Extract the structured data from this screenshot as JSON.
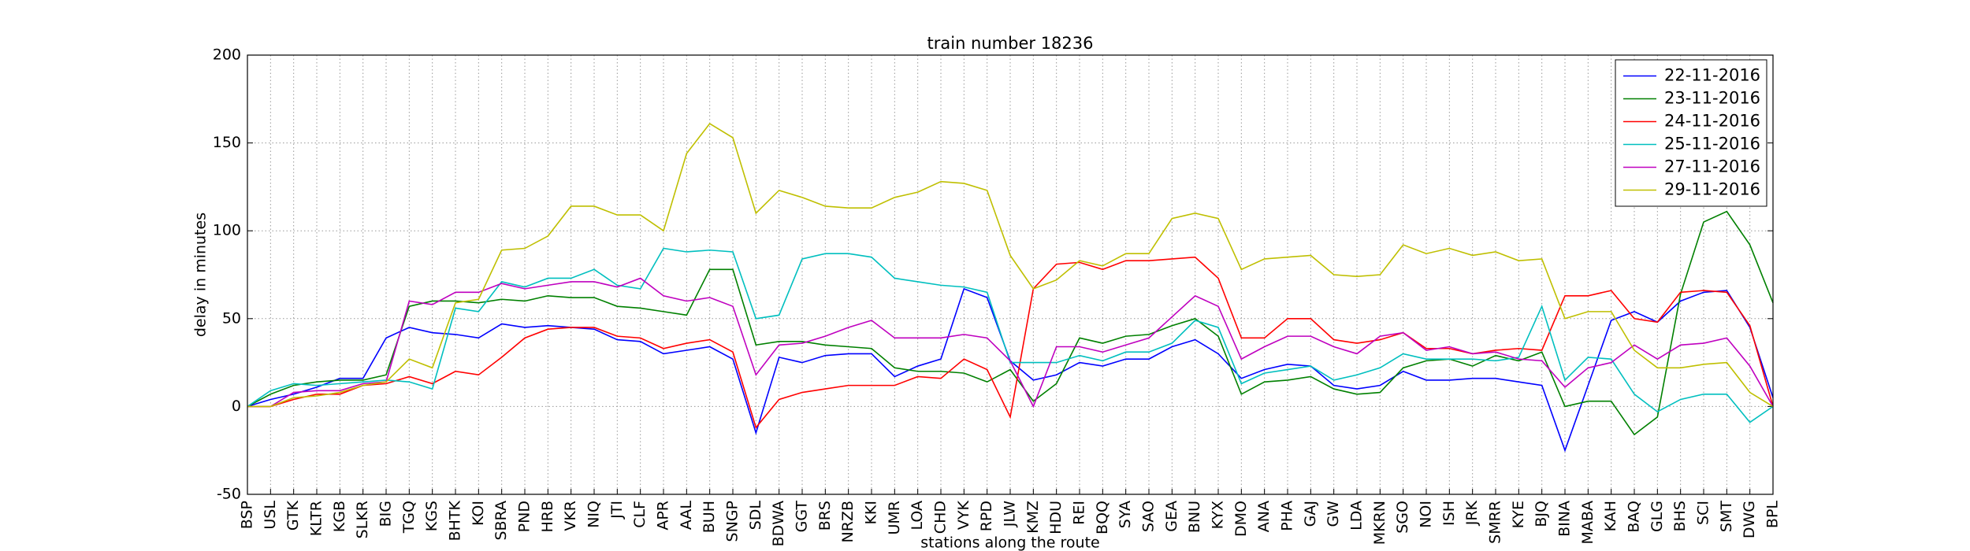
{
  "chart_data": {
    "type": "line",
    "title": "train number 18236",
    "x_label": "stations along the route",
    "y_label": "delay in minutes",
    "categories": [
      "BSP",
      "USL",
      "GTK",
      "KLTR",
      "KGB",
      "SLKR",
      "BIG",
      "TGQ",
      "KGS",
      "BHTK",
      "KOI",
      "SBRA",
      "PND",
      "HRB",
      "VKR",
      "NIQ",
      "JTI",
      "CLF",
      "APR",
      "AAL",
      "BUH",
      "SNGP",
      "SDL",
      "BDWA",
      "GGT",
      "BRS",
      "NRZB",
      "KKI",
      "UMR",
      "LOA",
      "CHD",
      "VYK",
      "RPD",
      "JLW",
      "KMZ",
      "HDU",
      "REI",
      "BQQ",
      "SYA",
      "SAO",
      "GEA",
      "BNU",
      "KYX",
      "DMO",
      "ANA",
      "PHA",
      "GAJ",
      "GW",
      "LDA",
      "MKRN",
      "SGO",
      "NOI",
      "ISH",
      "JRK",
      "SMRR",
      "KYE",
      "BJQ",
      "BINA",
      "MABA",
      "KAH",
      "BAQ",
      "GLG",
      "BHS",
      "SCI",
      "SMT",
      "DWG",
      "BPL"
    ],
    "series": [
      {
        "name": "22-11-2016",
        "color": "#0000ff",
        "values": [
          0,
          4,
          7,
          11,
          16,
          16,
          39,
          45,
          42,
          41,
          39,
          47,
          45,
          46,
          45,
          44,
          38,
          37,
          30,
          32,
          34,
          27,
          -15,
          28,
          25,
          29,
          30,
          30,
          17,
          23,
          27,
          67,
          62,
          26,
          15,
          18,
          25,
          23,
          27,
          27,
          34,
          38,
          30,
          16,
          21,
          24,
          23,
          12,
          10,
          12,
          20,
          15,
          15,
          16,
          16,
          14,
          12,
          -25,
          12,
          49,
          54,
          48,
          60,
          65,
          66,
          45,
          5
        ]
      },
      {
        "name": "23-11-2016",
        "color": "#008000",
        "values": [
          0,
          7,
          12,
          14,
          15,
          15,
          18,
          57,
          60,
          60,
          59,
          61,
          60,
          63,
          62,
          62,
          57,
          56,
          54,
          52,
          78,
          78,
          35,
          37,
          37,
          35,
          34,
          33,
          22,
          20,
          20,
          19,
          14,
          21,
          3,
          13,
          39,
          36,
          40,
          41,
          46,
          50,
          40,
          7,
          14,
          15,
          17,
          10,
          7,
          8,
          22,
          26,
          27,
          23,
          29,
          26,
          31,
          0,
          3,
          3,
          -16,
          -6,
          64,
          105,
          111,
          92,
          59
        ]
      },
      {
        "name": "24-11-2016",
        "color": "#ff0000",
        "values": [
          0,
          0,
          4,
          7,
          7,
          12,
          13,
          17,
          13,
          20,
          18,
          28,
          39,
          44,
          45,
          45,
          40,
          39,
          33,
          36,
          38,
          31,
          -12,
          4,
          8,
          10,
          12,
          12,
          12,
          17,
          16,
          27,
          21,
          -6,
          67,
          81,
          82,
          78,
          83,
          83,
          84,
          85,
          73,
          39,
          39,
          50,
          50,
          38,
          36,
          38,
          42,
          33,
          33,
          30,
          32,
          33,
          32,
          63,
          63,
          66,
          50,
          48,
          65,
          66,
          65,
          46,
          0
        ]
      },
      {
        "name": "25-11-2016",
        "color": "#00bfbf",
        "values": [
          0,
          9,
          13,
          12,
          13,
          14,
          15,
          14,
          10,
          56,
          54,
          71,
          68,
          73,
          73,
          78,
          69,
          67,
          90,
          88,
          89,
          88,
          50,
          52,
          84,
          87,
          87,
          85,
          73,
          71,
          69,
          68,
          65,
          25,
          25,
          25,
          29,
          26,
          31,
          31,
          36,
          49,
          45,
          13,
          19,
          21,
          23,
          15,
          18,
          22,
          30,
          27,
          27,
          27,
          26,
          28,
          57,
          15,
          28,
          27,
          7,
          -3,
          4,
          7,
          7,
          -9,
          0
        ]
      },
      {
        "name": "27-11-2016",
        "color": "#bf00bf",
        "values": [
          0,
          0,
          8,
          9,
          9,
          13,
          14,
          60,
          58,
          65,
          65,
          70,
          67,
          69,
          71,
          71,
          68,
          73,
          63,
          60,
          62,
          57,
          18,
          35,
          36,
          40,
          45,
          49,
          39,
          39,
          39,
          41,
          39,
          26,
          0,
          34,
          34,
          31,
          35,
          39,
          51,
          63,
          57,
          27,
          34,
          40,
          40,
          34,
          30,
          40,
          42,
          32,
          34,
          30,
          31,
          27,
          26,
          11,
          22,
          25,
          35,
          27,
          35,
          36,
          39,
          23,
          0
        ]
      },
      {
        "name": "29-11-2016",
        "color": "#bfbf00",
        "values": [
          0,
          0,
          5,
          6,
          8,
          12,
          14,
          27,
          22,
          59,
          61,
          89,
          90,
          97,
          114,
          114,
          109,
          109,
          100,
          144,
          161,
          153,
          110,
          123,
          119,
          114,
          113,
          113,
          119,
          122,
          128,
          127,
          123,
          86,
          67,
          72,
          83,
          80,
          87,
          87,
          107,
          110,
          107,
          78,
          84,
          85,
          86,
          75,
          74,
          75,
          92,
          87,
          90,
          86,
          88,
          83,
          84,
          50,
          54,
          54,
          32,
          22,
          22,
          24,
          25,
          8,
          0
        ]
      }
    ],
    "ylim": [
      -50,
      200
    ],
    "yticks": [
      -50,
      0,
      50,
      100,
      150,
      200
    ],
    "grid": true,
    "legend": "upper right"
  }
}
